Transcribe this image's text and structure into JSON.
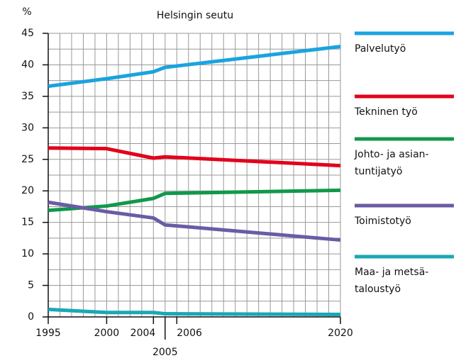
{
  "chart_data": {
    "type": "line",
    "title": "Helsingin seutu",
    "y_label": "%",
    "x": [
      1995,
      2000,
      2004,
      2005,
      2020
    ],
    "series": [
      {
        "name": "Palvelutyö",
        "color": "#1aa3e0",
        "values": [
          36.6,
          37.8,
          38.9,
          39.6,
          42.9
        ]
      },
      {
        "name": "Tekninen työ",
        "color": "#e3001b",
        "values": [
          26.8,
          26.7,
          25.2,
          25.4,
          24.0
        ]
      },
      {
        "name": "Johto- ja asian-\ntuntijatyö",
        "color": "#10994a",
        "values": [
          16.9,
          17.6,
          18.8,
          19.6,
          20.1
        ]
      },
      {
        "name": "Toimistotyö",
        "color": "#6b5ba5",
        "values": [
          18.2,
          16.7,
          15.7,
          14.6,
          12.2
        ]
      },
      {
        "name": "Maa- ja metsä-\ntaloustyö",
        "color": "#1aa8b4",
        "values": [
          1.2,
          0.7,
          0.7,
          0.5,
          0.4
        ]
      }
    ],
    "xlim": [
      1995,
      2020
    ],
    "xticks": [
      1995,
      2000,
      2004,
      2005,
      2006,
      2020
    ],
    "ylim": [
      0,
      45
    ],
    "yticks": [
      0,
      5,
      10,
      15,
      20,
      25,
      30,
      35,
      40,
      45
    ],
    "grid": true,
    "xgrid_step": 1,
    "ygrid_step": 2.5,
    "legend": "right"
  }
}
